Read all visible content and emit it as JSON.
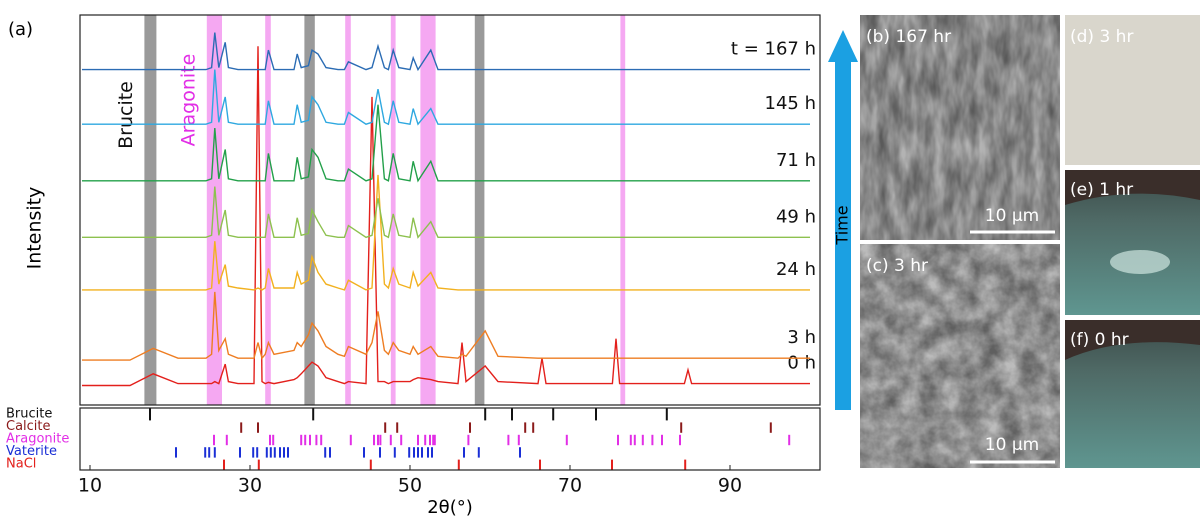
{
  "chart_data": [
    {
      "type": "line",
      "panel_label": "(a)",
      "ylabel": "Intensity",
      "xlim": [
        8.75,
        101.25
      ],
      "ylim": [
        0,
        100
      ],
      "x": [
        9,
        15,
        17.9,
        21,
        24.5,
        25.2,
        25.6,
        26.1,
        26.9,
        27.3,
        28.5,
        30.5,
        31,
        31.5,
        31.9,
        32.3,
        33,
        35.5,
        35.9,
        36.4,
        37.3,
        37.75,
        38.5,
        39.5,
        41,
        41.8,
        42.3,
        44.5,
        45.25,
        46,
        46.8,
        47.3,
        47.9,
        48.6,
        50,
        50.4,
        51,
        52.6,
        53.5,
        56,
        56.5,
        57,
        59.4,
        61,
        66,
        66.5,
        67,
        75.3,
        75.75,
        76.2,
        84.3,
        84.75,
        85.2,
        100
      ],
      "series": [
        {
          "name": "0 h",
          "color": "#e3201c",
          "values": [
            5,
            5,
            8,
            5.5,
            5.5,
            5.5,
            6,
            5.5,
            10.5,
            6,
            5.5,
            5.5,
            92,
            6,
            5.5,
            5.8,
            5.5,
            6.5,
            7,
            8,
            10,
            11,
            10,
            7,
            6,
            5.5,
            6,
            5.5,
            79,
            6,
            6,
            5.5,
            6,
            6,
            6,
            6.5,
            7,
            6.5,
            6,
            5.5,
            16,
            6,
            10,
            6,
            5.5,
            12,
            5.5,
            5.5,
            17,
            5.5,
            5.5,
            9,
            5.5,
            5.5
          ]
        },
        {
          "name": "3 h",
          "color": "#ee7d22",
          "values": [
            11.5,
            11.5,
            14.5,
            12,
            12,
            13,
            29,
            14,
            17,
            13,
            12,
            12,
            16,
            12,
            13,
            16,
            13,
            14,
            16,
            15,
            18,
            21,
            19,
            15,
            13,
            12.5,
            15,
            13,
            16,
            24,
            14,
            13,
            16,
            14,
            13,
            15,
            13,
            15,
            12.5,
            12,
            13,
            12.5,
            19,
            12.5,
            12,
            12,
            12,
            12,
            12,
            12,
            12,
            12,
            12,
            12
          ]
        },
        {
          "name": "24 h",
          "color": "#f2b11f",
          "values": [
            29.5,
            29.5,
            29.5,
            29.5,
            29.5,
            30,
            42,
            31,
            36,
            30.5,
            30,
            29.5,
            30,
            29.5,
            30,
            35,
            30,
            30,
            34,
            31,
            32,
            38,
            34,
            31,
            30,
            29.5,
            32,
            29.5,
            30,
            59,
            31,
            30,
            35,
            31,
            30,
            34,
            30.5,
            34,
            30,
            29.5,
            29.5,
            29.5,
            29.5,
            29.5,
            29.5,
            29.5,
            29.5,
            29.5,
            29.5,
            29.5,
            29.5,
            29.5,
            29.5,
            29.5
          ]
        },
        {
          "name": "49 h",
          "color": "#8dc14f",
          "values": [
            43,
            43,
            43,
            43,
            43,
            43.5,
            56,
            43.5,
            50,
            43.5,
            43,
            43,
            43,
            43,
            43,
            49,
            43,
            43,
            48,
            43.5,
            44,
            50,
            47,
            43.5,
            43,
            43,
            46,
            43,
            43.5,
            53,
            43.5,
            43,
            49,
            43.5,
            43,
            48,
            43,
            47,
            43,
            43,
            43,
            43,
            43,
            43,
            43,
            43,
            43,
            43,
            43,
            43,
            43,
            43,
            43,
            43
          ]
        },
        {
          "name": "71 h",
          "color": "#23a04a",
          "values": [
            57.5,
            57.5,
            57.5,
            57.5,
            57.5,
            58,
            71,
            58,
            65.5,
            58,
            57.5,
            57.5,
            57.5,
            57.5,
            57.5,
            64.5,
            57.5,
            57.5,
            63.5,
            58,
            58.5,
            65.5,
            63.5,
            58,
            57.5,
            57.5,
            60.5,
            57.5,
            58,
            77,
            58,
            57.5,
            64.5,
            58,
            57.5,
            62.5,
            57.5,
            62.5,
            57.5,
            57.5,
            57.5,
            57.5,
            57.5,
            57.5,
            57.5,
            57.5,
            57.5,
            57.5,
            57.5,
            57.5,
            57.5,
            57.5,
            57.5,
            57.5
          ]
        },
        {
          "name": "145 h",
          "color": "#2ea8e0",
          "values": [
            72,
            72,
            72,
            72,
            72,
            72.5,
            86,
            72.5,
            79,
            72.5,
            72,
            72,
            72,
            72,
            72,
            78,
            72,
            72,
            77,
            72.5,
            73,
            79,
            77,
            72.5,
            72,
            72,
            75,
            72,
            72.5,
            81,
            72.5,
            72,
            78,
            72.5,
            72,
            76,
            72,
            76,
            72,
            72,
            72,
            72,
            72,
            72,
            72,
            72,
            72,
            72,
            72,
            72,
            72,
            72,
            72,
            72
          ]
        },
        {
          "name": "t = 167 h",
          "color": "#2b6cb4",
          "values": [
            86,
            86,
            86,
            86,
            86,
            86.5,
            95.5,
            86.5,
            93,
            86.5,
            86,
            86,
            86,
            86,
            86,
            91,
            86,
            86,
            90,
            86.5,
            87,
            91,
            90,
            86.5,
            86,
            86,
            88,
            86,
            86.5,
            92,
            86.5,
            86,
            91,
            86.5,
            86,
            89,
            86,
            91,
            86,
            86,
            86,
            86,
            86,
            86,
            86,
            86,
            86,
            86,
            86,
            86,
            86,
            86,
            86,
            86
          ]
        }
      ],
      "bands": [
        {
          "label": "Brucite",
          "color": "#9a9a9a",
          "ranges": [
            [
              16.8,
              18.3
            ],
            [
              36.8,
              38.1
            ],
            [
              58.1,
              59.3
            ]
          ]
        },
        {
          "label": "Aragonite",
          "color": "#f5a8f2",
          "ranges": [
            [
              24.6,
              26.5
            ],
            [
              31.9,
              32.6
            ],
            [
              41.9,
              42.6
            ],
            [
              47.6,
              48.2
            ],
            [
              51.3,
              53.2
            ],
            [
              76.3,
              76.9
            ]
          ]
        }
      ]
    },
    {
      "type": "reference",
      "xlabel": "2θ(°)",
      "xlim": [
        8.75,
        101.25
      ],
      "xticks": [
        10,
        30,
        50,
        70,
        90
      ],
      "series": [
        {
          "name": "Brucite",
          "color": "#111111",
          "positions": [
            17.5,
            37.9,
            59.4,
            62.75,
            67.9,
            73.25,
            82.1
          ]
        },
        {
          "name": "Calcite",
          "color": "#8b1a1a",
          "positions": [
            28.9,
            31,
            46.9,
            48.4,
            57.5,
            64.4,
            65.4,
            83.9,
            95.1
          ]
        },
        {
          "name": "Aragonite",
          "color": "#e22ee6",
          "positions": [
            25.5,
            27.1,
            32.5,
            32.9,
            36.4,
            36.9,
            37.5,
            38.3,
            38.9,
            42.6,
            45.5,
            46,
            46.3,
            47.6,
            48.9,
            51,
            51.9,
            52.5,
            52.9,
            53.1,
            57.3,
            62.3,
            63.6,
            69.6,
            76,
            77.6,
            78.1,
            79.1,
            80.3,
            81.5,
            83.75,
            97.4
          ]
        },
        {
          "name": "Vaterite",
          "color": "#1a2fd6",
          "positions": [
            20.75,
            24.4,
            24.9,
            25.6,
            28.75,
            30.4,
            30.9,
            32.1,
            32.6,
            33.1,
            33.75,
            34.25,
            34.75,
            39.4,
            40,
            44.25,
            46.25,
            48.1,
            49.9,
            50.5,
            51,
            51.5,
            52.25,
            52.75,
            56.75,
            58.6,
            63.75
          ]
        },
        {
          "name": "NaCl",
          "color": "#e3201c",
          "positions": [
            26.75,
            31.1,
            45.1,
            56.1,
            66.25,
            75.25,
            84.4
          ]
        }
      ]
    }
  ],
  "arrow_label": "Time",
  "panels": [
    {
      "label": "(b) 167 hr",
      "scale_bar": "10 μm"
    },
    {
      "label": "(c) 3 hr",
      "scale_bar": "10 μm"
    },
    {
      "label": "(d) 3 hr"
    },
    {
      "label": "(e) 1 hr"
    },
    {
      "label": "(f) 0 hr"
    }
  ]
}
